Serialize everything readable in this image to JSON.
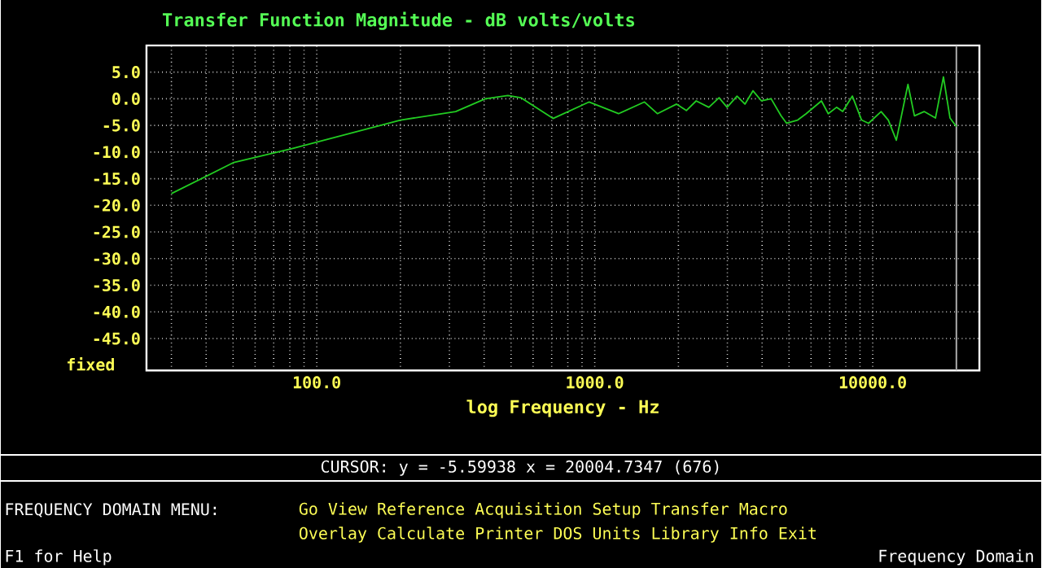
{
  "chart_data": {
    "type": "line",
    "title": "Transfer Function Magnitude - dB volts/volts",
    "xlabel": "log Frequency - Hz",
    "log": "x",
    "grid": true,
    "marker": "none",
    "line_style": "solid",
    "xlim": [
      24.4,
      24200
    ],
    "ylim": [
      -51,
      10
    ],
    "xticks": [
      {
        "value": 30,
        "label": null
      },
      {
        "value": 40,
        "label": null
      },
      {
        "value": 50,
        "label": null
      },
      {
        "value": 60,
        "label": null
      },
      {
        "value": 70,
        "label": null
      },
      {
        "value": 80,
        "label": null
      },
      {
        "value": 90,
        "label": null
      },
      {
        "value": 100,
        "label": "100.0"
      },
      {
        "value": 200,
        "label": null
      },
      {
        "value": 300,
        "label": null
      },
      {
        "value": 400,
        "label": null
      },
      {
        "value": 500,
        "label": null
      },
      {
        "value": 600,
        "label": null
      },
      {
        "value": 700,
        "label": null
      },
      {
        "value": 800,
        "label": null
      },
      {
        "value": 900,
        "label": null
      },
      {
        "value": 1000,
        "label": "1000.0"
      },
      {
        "value": 2000,
        "label": null
      },
      {
        "value": 3000,
        "label": null
      },
      {
        "value": 4000,
        "label": null
      },
      {
        "value": 5000,
        "label": null
      },
      {
        "value": 6000,
        "label": null
      },
      {
        "value": 7000,
        "label": null
      },
      {
        "value": 8000,
        "label": null
      },
      {
        "value": 9000,
        "label": null
      },
      {
        "value": 10000,
        "label": "10000.0"
      }
    ],
    "yticks": [
      {
        "value": 5,
        "label": "5.0"
      },
      {
        "value": 0,
        "label": "0.0"
      },
      {
        "value": -5,
        "label": "-5.0"
      },
      {
        "value": -10,
        "label": "-10.0"
      },
      {
        "value": -15,
        "label": "-15.0"
      },
      {
        "value": -20,
        "label": "-20.0"
      },
      {
        "value": -25,
        "label": "-25.0"
      },
      {
        "value": -30,
        "label": "-30.0"
      },
      {
        "value": -35,
        "label": "-35.0"
      },
      {
        "value": -40,
        "label": "-40.0"
      },
      {
        "value": -45,
        "label": "-45.0"
      }
    ],
    "series": [
      {
        "color": "#22cc22",
        "x": [
          30,
          50,
          82,
          200,
          316,
          404,
          487,
          542,
          708,
          955,
          1218,
          1510,
          1680,
          1970,
          2136,
          2317,
          2573,
          2800,
          2994,
          3250,
          3470,
          3710,
          3980,
          4310,
          4680,
          4900,
          5370,
          5760,
          6540,
          6920,
          7410,
          7800,
          8450,
          9120,
          9660,
          10720,
          11380,
          12160,
          13390,
          14130,
          15310,
          16820,
          17970,
          18970,
          20000
        ],
        "values": [
          -17.8,
          -12.0,
          -9.3,
          -4.0,
          -2.4,
          0.0,
          0.6,
          0.2,
          -3.7,
          -0.6,
          -2.8,
          -0.6,
          -2.8,
          -1.0,
          -2.2,
          -0.4,
          -1.6,
          0.2,
          -1.6,
          0.5,
          -1.0,
          1.5,
          -0.4,
          0.0,
          -3.2,
          -4.6,
          -4.0,
          -2.8,
          -0.4,
          -2.8,
          -1.6,
          -2.4,
          0.5,
          -4.0,
          -4.6,
          -2.4,
          -4.0,
          -7.8,
          2.7,
          -3.2,
          -2.4,
          -3.6,
          4.1,
          -3.6,
          -5.2
        ]
      }
    ],
    "ref_lines": [
      {
        "axis": "x",
        "value": 20000,
        "color": "#aaaaaa"
      }
    ],
    "annotations": [
      "fixed",
      "CURSOR: y = -5.59938 x = 20004.7347 (676)",
      "FREQUENCY DOMAIN MENU:",
      "Go View Reference Acquisition Setup Transfer Macro",
      "Overlay Calculate Printer DOS Units Library Info Exit",
      "F1 for Help",
      "Frequency Domain"
    ]
  }
}
